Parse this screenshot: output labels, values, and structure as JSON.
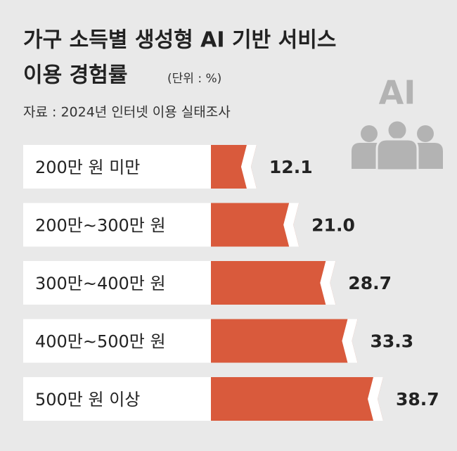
{
  "chart_data": {
    "type": "hbar",
    "title": [
      "가구 소득별 생성형 AI 기반 서비스",
      "이용 경험률"
    ],
    "unit": "(단위 : %)",
    "source": "자료 : 2024년 인터넷 이용 실태조사",
    "icon_label": "AI",
    "categories": [
      "200만 원 미만",
      "200만~300만 원",
      "300만~400만 원",
      "400만~500만 원",
      "500만 원 이상"
    ],
    "values": [
      12.1,
      21.0,
      28.7,
      33.3,
      38.7
    ],
    "value_labels": [
      "12.1",
      "21.0",
      "28.7",
      "33.3",
      "38.7"
    ],
    "color": "#d95a3c"
  }
}
